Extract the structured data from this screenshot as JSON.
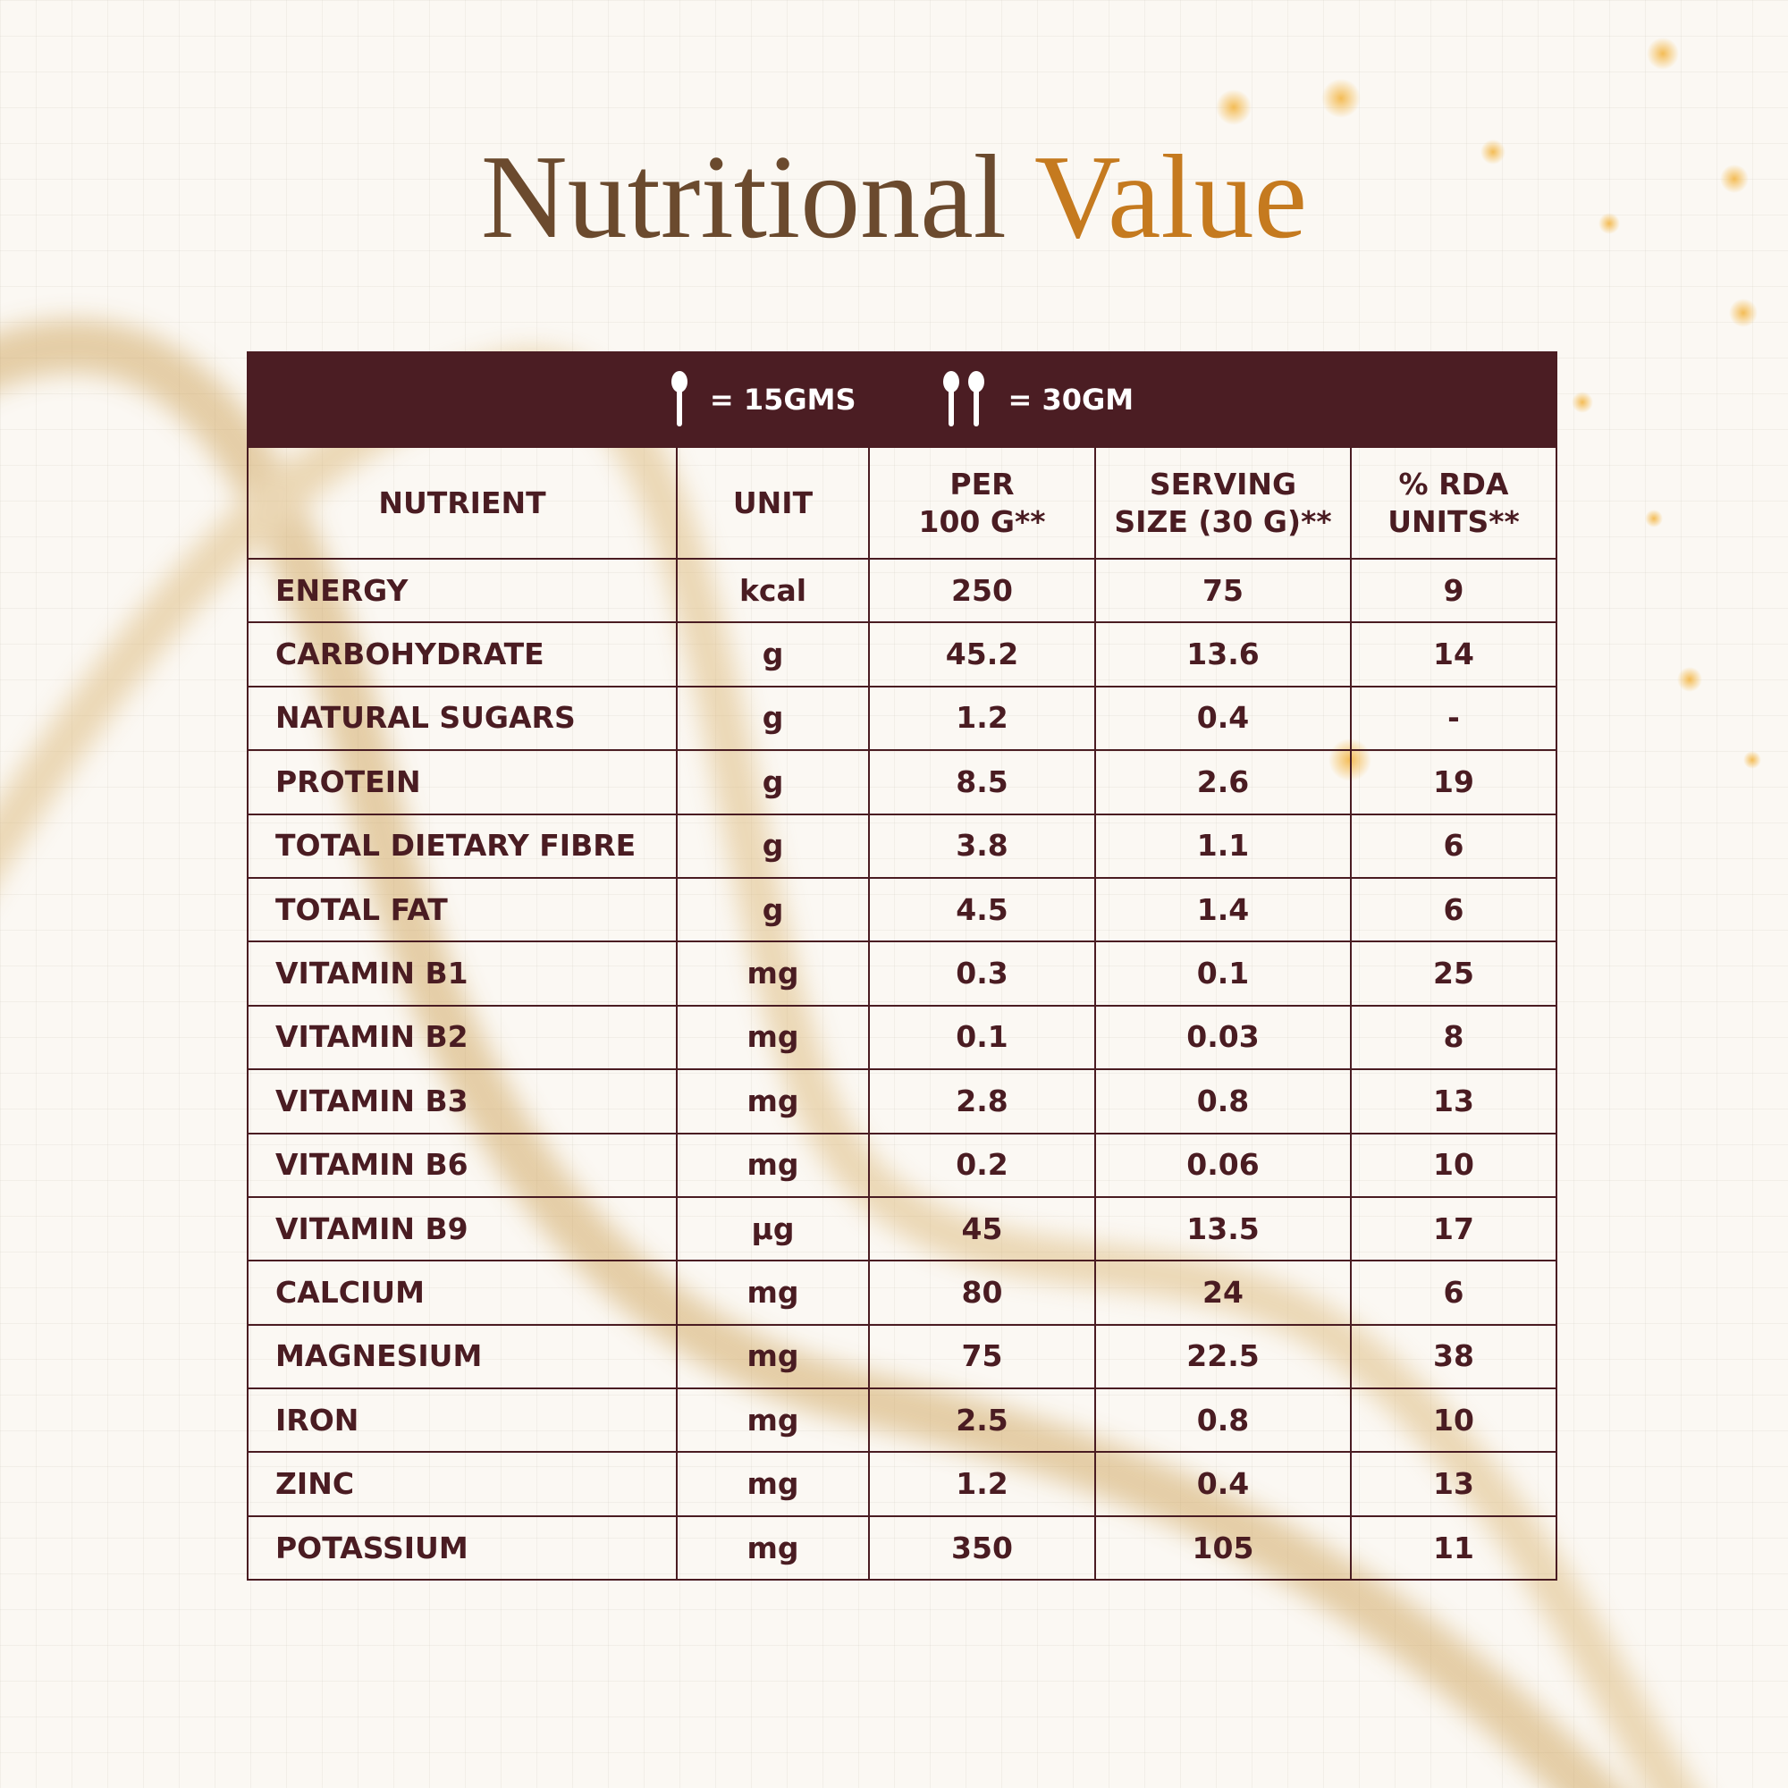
{
  "title": {
    "part1": "Nutritional",
    "part2": "Value"
  },
  "serving_band": [
    {
      "label": "= 15GMS"
    },
    {
      "label": "= 30GM"
    }
  ],
  "table": {
    "header": [
      [
        "NUTRIENT"
      ],
      [
        "UNIT"
      ],
      [
        "PER",
        "100 G**"
      ],
      [
        "SERVING",
        "SIZE (30 G)**"
      ],
      [
        "% RDA",
        "UNITS**"
      ]
    ],
    "rows": [
      [
        "ENERGY",
        "kcal",
        "250",
        "75",
        "9"
      ],
      [
        "CARBOHYDRATE",
        "g",
        "45.2",
        "13.6",
        "14"
      ],
      [
        "NATURAL SUGARS",
        "g",
        "1.2",
        "0.4",
        "-"
      ],
      [
        "PROTEIN",
        "g",
        "8.5",
        "2.6",
        "19"
      ],
      [
        "TOTAL DIETARY FIBRE",
        "g",
        "3.8",
        "1.1",
        "6"
      ],
      [
        "TOTAL FAT",
        "g",
        "4.5",
        "1.4",
        "6"
      ],
      [
        "VITAMIN B1",
        "mg",
        "0.3",
        "0.1",
        "25"
      ],
      [
        "VITAMIN B2",
        "mg",
        "0.1",
        "0.03",
        "8"
      ],
      [
        "VITAMIN B3",
        "mg",
        "2.8",
        "0.8",
        "13"
      ],
      [
        "VITAMIN B6",
        "mg",
        "0.2",
        "0.06",
        "10"
      ],
      [
        "VITAMIN B9",
        "µg",
        "45",
        "13.5",
        "17"
      ],
      [
        "CALCIUM",
        "mg",
        "80",
        "24",
        "6"
      ],
      [
        "MAGNESIUM",
        "mg",
        "75",
        "22.5",
        "38"
      ],
      [
        "IRON",
        "mg",
        "2.5",
        "0.8",
        "10"
      ],
      [
        "ZINC",
        "mg",
        "1.2",
        "0.4",
        "13"
      ],
      [
        "POTASSIUM",
        "mg",
        "350",
        "105",
        "11"
      ]
    ]
  }
}
